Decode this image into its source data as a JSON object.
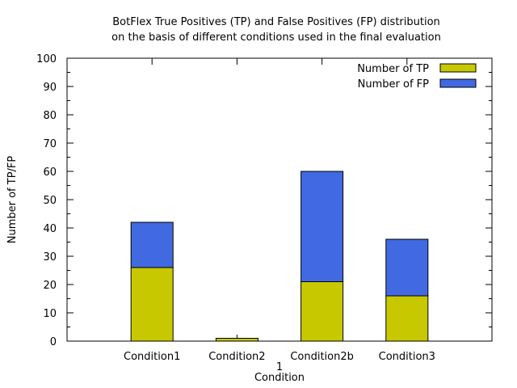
{
  "chart_data": {
    "type": "bar",
    "stacked": true,
    "title_lines": [
      "BotFlex True Positives (TP) and False Positives (FP) distribution",
      "on the basis of different conditions used in the final evaluation"
    ],
    "xlabel": "Condition",
    "xlabel_prefix": "1",
    "ylabel": "Number of TP/FP",
    "ylim": [
      0,
      100
    ],
    "ytick_step": 10,
    "yminor_step": 5,
    "grid": false,
    "legend_position": "top-right",
    "categories": [
      "Condition1",
      "Condition2",
      "Condition2b",
      "Condition3"
    ],
    "series": [
      {
        "name": "Number of TP",
        "color": "#c8c800",
        "values": [
          26,
          1,
          21,
          16
        ]
      },
      {
        "name": "Number of FP",
        "color": "#4169e1",
        "values": [
          16,
          0,
          39,
          20
        ]
      }
    ]
  }
}
